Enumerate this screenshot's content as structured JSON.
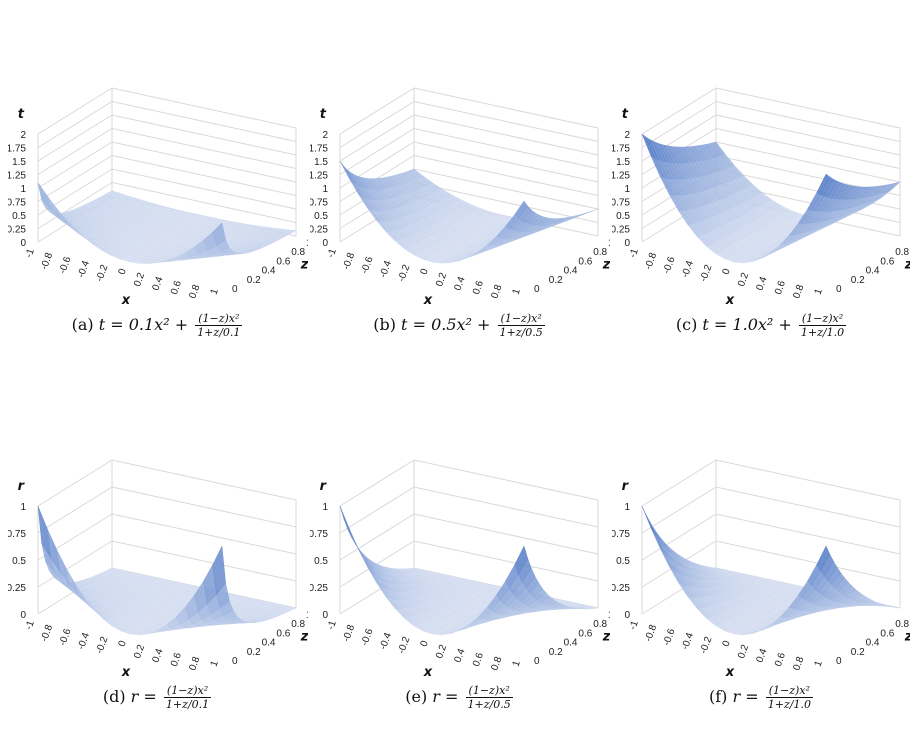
{
  "chart_data": [
    {
      "type": "surface3d",
      "panel": "a",
      "label": "(a)",
      "lhs": "t",
      "expr": "0.1x²",
      "num": "(1−z)x²",
      "den": "1+z/0.1",
      "a": 0.1,
      "var": "t",
      "z_axis_ticks": [
        "0",
        "0.25",
        "0.5",
        "0.75",
        "1",
        "1.25",
        "1.5",
        "1.75",
        "2"
      ],
      "zmax": 2,
      "x_ticks": [
        "-1",
        "-0.8",
        "-0.6",
        "-0.4",
        "-0.2",
        "0",
        "0.2",
        "0.4",
        "0.6",
        "0.8",
        "1"
      ],
      "z_ticks": [
        "0",
        "0.2",
        "0.4",
        "0.6",
        "0.8",
        "1"
      ],
      "xlabel": "x",
      "zlabel": "z",
      "vlabel": "t",
      "color": "#3f6cc0"
    },
    {
      "type": "surface3d",
      "panel": "b",
      "label": "(b)",
      "lhs": "t",
      "expr": "0.5x²",
      "num": "(1−z)x²",
      "den": "1+z/0.5",
      "a": 0.5,
      "var": "t",
      "z_axis_ticks": [
        "0",
        "0.25",
        "0.5",
        "0.75",
        "1",
        "1.25",
        "1.5",
        "1.75",
        "2"
      ],
      "zmax": 2,
      "x_ticks": [
        "-1",
        "-0.8",
        "-0.6",
        "-0.4",
        "-0.2",
        "0",
        "0.2",
        "0.4",
        "0.6",
        "0.8",
        "1"
      ],
      "z_ticks": [
        "0",
        "0.2",
        "0.4",
        "0.6",
        "0.8",
        "1"
      ],
      "xlabel": "x",
      "zlabel": "z",
      "vlabel": "t",
      "color": "#3f6cc0"
    },
    {
      "type": "surface3d",
      "panel": "c",
      "label": "(c)",
      "lhs": "t",
      "expr": "1.0x²",
      "num": "(1−z)x²",
      "den": "1+z/1.0",
      "a": 1.0,
      "var": "t",
      "z_axis_ticks": [
        "0",
        "0.25",
        "0.5",
        "0.75",
        "1",
        "1.25",
        "1.5",
        "1.75",
        "2"
      ],
      "zmax": 2,
      "x_ticks": [
        "-1",
        "-0.8",
        "-0.6",
        "-0.4",
        "-0.2",
        "0",
        "0.2",
        "0.4",
        "0.6",
        "0.8",
        "1"
      ],
      "z_ticks": [
        "0",
        "0.2",
        "0.4",
        "0.6",
        "0.8",
        "1"
      ],
      "xlabel": "x",
      "zlabel": "z",
      "vlabel": "t",
      "color": "#3f6cc0"
    },
    {
      "type": "surface3d",
      "panel": "d",
      "label": "(d)",
      "lhs": "r",
      "expr": "",
      "num": "(1−z)x²",
      "den": "1+z/0.1",
      "a": 0.1,
      "var": "r",
      "z_axis_ticks": [
        "0",
        "0.25",
        "0.5",
        "0.75",
        "1"
      ],
      "zmax": 1,
      "x_ticks": [
        "-1",
        "-0.8",
        "-0.6",
        "-0.4",
        "-0.2",
        "0",
        "0.2",
        "0.4",
        "0.6",
        "0.8",
        "1"
      ],
      "z_ticks": [
        "0",
        "0.2",
        "0.4",
        "0.6",
        "0.8",
        "1"
      ],
      "xlabel": "x",
      "zlabel": "z",
      "vlabel": "r",
      "color": "#3f6cc0"
    },
    {
      "type": "surface3d",
      "panel": "e",
      "label": "(e)",
      "lhs": "r",
      "expr": "",
      "num": "(1−z)x²",
      "den": "1+z/0.5",
      "a": 0.5,
      "var": "r",
      "z_axis_ticks": [
        "0",
        "0.25",
        "0.5",
        "0.75",
        "1"
      ],
      "zmax": 1,
      "x_ticks": [
        "-1",
        "-0.8",
        "-0.6",
        "-0.4",
        "-0.2",
        "0",
        "0.2",
        "0.4",
        "0.6",
        "0.8",
        "1"
      ],
      "z_ticks": [
        "0",
        "0.2",
        "0.4",
        "0.6",
        "0.8",
        "1"
      ],
      "xlabel": "x",
      "zlabel": "z",
      "vlabel": "r",
      "color": "#3f6cc0"
    },
    {
      "type": "surface3d",
      "panel": "f",
      "label": "(f)",
      "lhs": "r",
      "expr": "",
      "num": "(1−z)x²",
      "den": "1+z/1.0",
      "a": 1.0,
      "var": "r",
      "z_axis_ticks": [
        "0",
        "0.25",
        "0.5",
        "0.75",
        "1"
      ],
      "zmax": 1,
      "x_ticks": [
        "-1",
        "-0.8",
        "-0.6",
        "-0.4",
        "-0.2",
        "0",
        "0.2",
        "0.4",
        "0.6",
        "0.8",
        "1"
      ],
      "z_ticks": [
        "0",
        "0.2",
        "0.4",
        "0.6",
        "0.8",
        "1"
      ],
      "xlabel": "x",
      "zlabel": "z",
      "vlabel": "r",
      "color": "#3f6cc0"
    }
  ]
}
